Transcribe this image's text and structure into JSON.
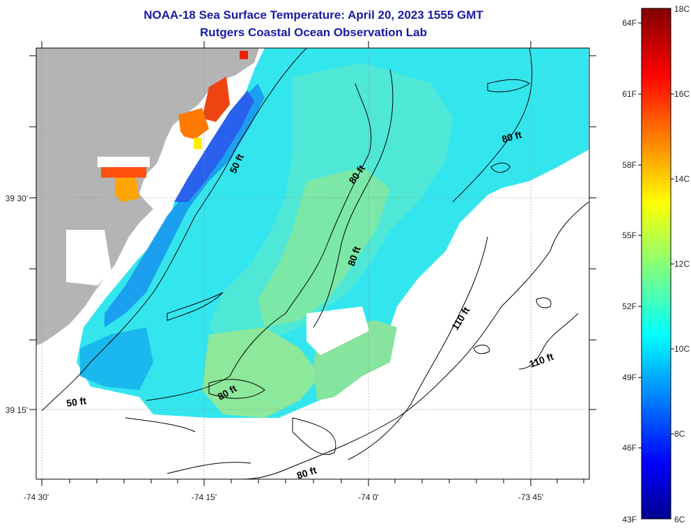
{
  "title_line1": "NOAA-18 Sea Surface Temperature:  April 20, 2023 1555 GMT",
  "title_line2": "Rutgers Coastal Ocean Observation Lab",
  "map": {
    "lat_ticks": [
      "39 30'",
      "39 15'"
    ],
    "lon_ticks": [
      "-74 30'",
      "-74 15'",
      "-74 0'",
      "-73 45'"
    ],
    "contour_labels": [
      {
        "text": "50 ft",
        "id": "contour-label-50ft-a"
      },
      {
        "text": "50 ft",
        "id": "contour-label-50ft-b"
      },
      {
        "text": "80 ft",
        "id": "contour-label-80ft-a"
      },
      {
        "text": "80 ft",
        "id": "contour-label-80ft-b"
      },
      {
        "text": "80 ft",
        "id": "contour-label-80ft-c"
      },
      {
        "text": "80 ft",
        "id": "contour-label-80ft-d"
      },
      {
        "text": "80 ft",
        "id": "contour-label-80ft-e"
      },
      {
        "text": "110 ft",
        "id": "contour-label-110ft-a"
      },
      {
        "text": "110 ft",
        "id": "contour-label-110ft-b"
      }
    ],
    "colors": {
      "land": "#b4b4b4",
      "cloud": "#ffffff",
      "contour": "#000000"
    }
  },
  "colorbar": {
    "fahrenheit": [
      "64F",
      "61F",
      "58F",
      "55F",
      "52F",
      "49F",
      "46F",
      "43F"
    ],
    "celsius": [
      "18C",
      "16C",
      "14C",
      "12C",
      "10C",
      "8C",
      "6C"
    ]
  }
}
